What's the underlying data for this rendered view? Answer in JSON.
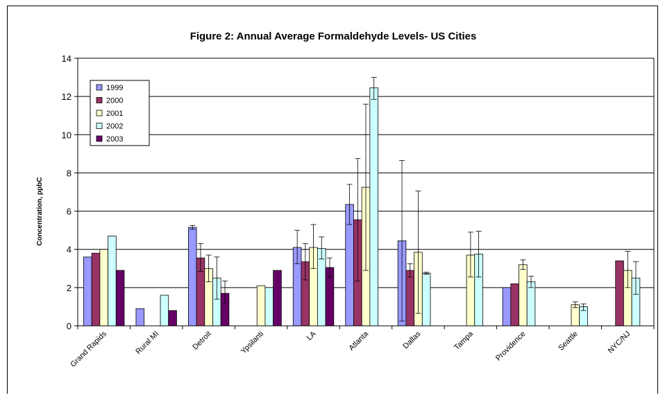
{
  "chart_data": {
    "type": "bar",
    "title": "Figure 2: Annual Average Formaldehyde Levels- US Cities",
    "ylabel": "Concentration, ppbC",
    "xlabel": "",
    "ylim": [
      0,
      14
    ],
    "yticks": [
      0,
      2,
      4,
      6,
      8,
      10,
      12,
      14
    ],
    "grid": true,
    "legend_position": "top-left",
    "categories": [
      "Grand Rapids",
      "Rural MI",
      "Detroit",
      "Ypsilanti",
      "LA",
      "Atlanta",
      "Dallas",
      "Tampa",
      "Providence",
      "Seattle",
      "NYC/NJ"
    ],
    "series": [
      {
        "name": "1999",
        "color": "#9999ff",
        "values": [
          3.6,
          0.9,
          5.15,
          null,
          4.1,
          6.35,
          4.45,
          null,
          2.0,
          null,
          null
        ],
        "err_low": [
          null,
          null,
          5.05,
          null,
          3.25,
          5.3,
          0.25,
          null,
          null,
          null,
          null
        ],
        "err_high": [
          null,
          null,
          5.25,
          null,
          5.0,
          7.4,
          8.65,
          null,
          null,
          null,
          null
        ]
      },
      {
        "name": "2000",
        "color": "#993366",
        "values": [
          3.8,
          null,
          3.55,
          null,
          3.35,
          5.55,
          2.9,
          null,
          2.2,
          null,
          3.4
        ],
        "err_low": [
          null,
          null,
          2.85,
          null,
          2.4,
          2.35,
          2.55,
          null,
          null,
          null,
          null
        ],
        "err_high": [
          null,
          null,
          4.3,
          null,
          4.3,
          8.75,
          3.25,
          null,
          null,
          null,
          null
        ]
      },
      {
        "name": "2001",
        "color": "#ffffcc",
        "values": [
          4.0,
          null,
          3.0,
          2.1,
          4.1,
          7.25,
          3.85,
          3.7,
          3.2,
          1.1,
          2.9
        ],
        "err_low": [
          null,
          null,
          2.3,
          null,
          3.0,
          2.9,
          0.65,
          2.55,
          2.95,
          0.95,
          2.0
        ],
        "err_high": [
          null,
          null,
          3.7,
          null,
          5.3,
          11.6,
          7.05,
          4.9,
          3.45,
          1.25,
          3.9
        ]
      },
      {
        "name": "2002",
        "color": "#ccffff",
        "values": [
          4.7,
          1.6,
          2.5,
          2.0,
          4.05,
          12.45,
          2.75,
          3.75,
          2.3,
          1.0,
          2.5
        ],
        "err_low": [
          null,
          null,
          1.4,
          null,
          3.5,
          11.85,
          2.7,
          2.55,
          2.0,
          0.8,
          1.65
        ],
        "err_high": [
          null,
          null,
          3.6,
          null,
          4.65,
          13.0,
          2.8,
          4.95,
          2.6,
          1.15,
          3.35
        ]
      },
      {
        "name": "2003",
        "color": "#660066",
        "values": [
          2.9,
          0.8,
          1.7,
          2.9,
          3.05,
          null,
          null,
          null,
          null,
          null,
          null
        ],
        "err_low": [
          null,
          null,
          1.15,
          null,
          2.55,
          null,
          null,
          null,
          null,
          null,
          null
        ],
        "err_high": [
          null,
          null,
          2.35,
          null,
          3.55,
          null,
          null,
          null,
          null,
          null,
          null
        ]
      }
    ]
  }
}
